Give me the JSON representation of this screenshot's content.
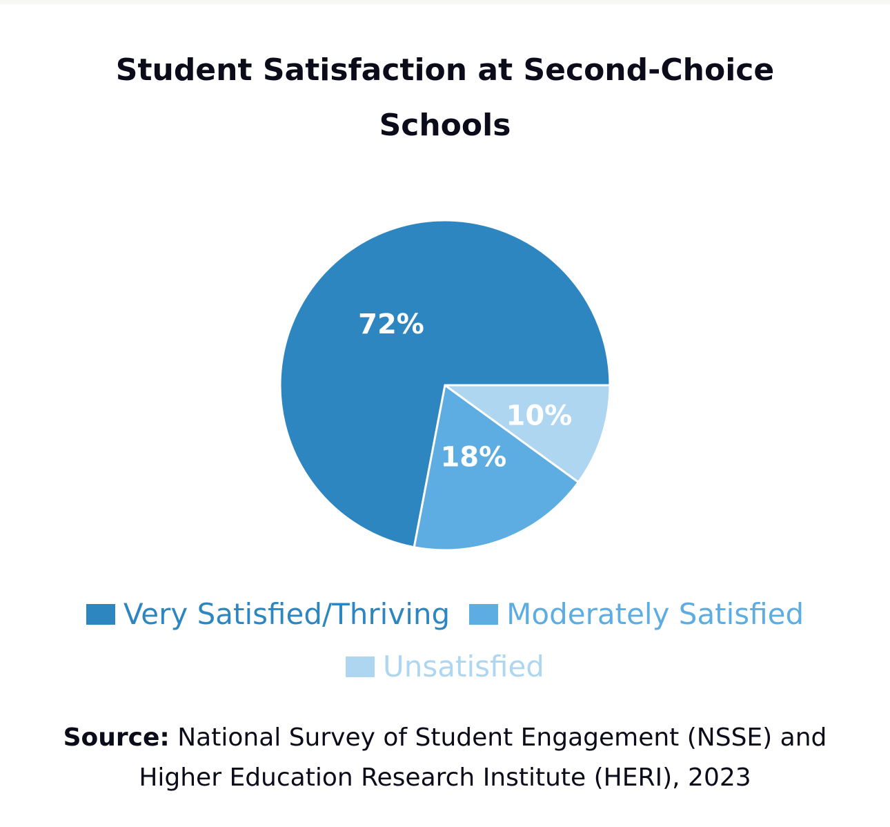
{
  "chart_data": {
    "type": "pie",
    "title": "Student Satisfaction at Second-Choice Schools",
    "title_lines": [
      "Student Satisfaction at Second-Choice",
      "Schools"
    ],
    "slices": [
      {
        "name": "Very Satisfied/Thriving",
        "value": 72,
        "label": "72%",
        "color": "#2e86c1"
      },
      {
        "name": "Moderately Satisfied",
        "value": 18,
        "label": "18%",
        "color": "#5dade2"
      },
      {
        "name": "Unsatisfied",
        "value": 10,
        "label": "10%",
        "color": "#aed6f1"
      }
    ],
    "legend_position": "bottom"
  },
  "source": {
    "prefix": "Source:",
    "line1": "National Survey of Student Engagement (NSSE) and",
    "line2": "Higher Education Research Institute (HERI), 2023"
  }
}
